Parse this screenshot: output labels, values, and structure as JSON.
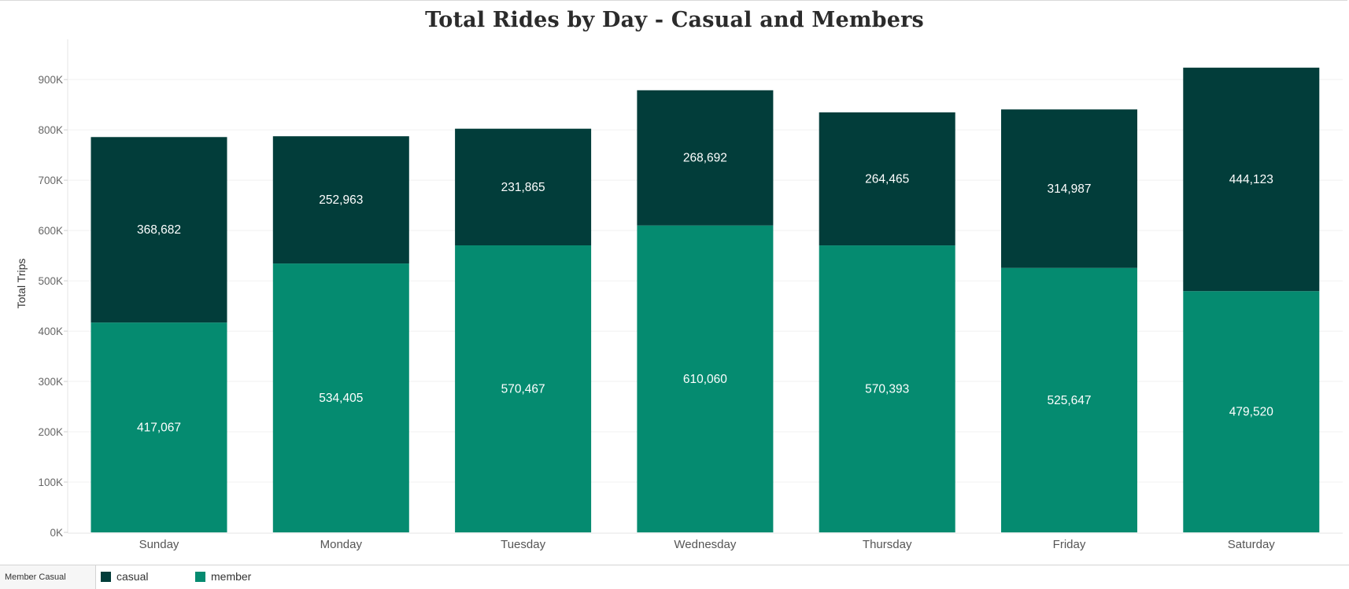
{
  "chart_data": {
    "type": "bar",
    "stacked": true,
    "title": "Total Rides by Day - Casual and Members",
    "xlabel": "",
    "ylabel": "Total Trips",
    "categories": [
      "Sunday",
      "Monday",
      "Tuesday",
      "Wednesday",
      "Thursday",
      "Friday",
      "Saturday"
    ],
    "series": [
      {
        "name": "member",
        "color": "#058b70",
        "values": [
          417067,
          534405,
          570467,
          610060,
          570393,
          525647,
          479520
        ],
        "labels": [
          "417,067",
          "534,405",
          "570,467",
          "610,060",
          "570,393",
          "525,647",
          "479,520"
        ]
      },
      {
        "name": "casual",
        "color": "#023d3a",
        "values": [
          368682,
          252963,
          231865,
          268692,
          264465,
          314987,
          444123
        ],
        "labels": [
          "368,682",
          "252,963",
          "231,865",
          "268,692",
          "264,465",
          "314,987",
          "444,123"
        ]
      }
    ],
    "ylim": [
      0,
      980000
    ],
    "yticks": [
      0,
      100000,
      200000,
      300000,
      400000,
      500000,
      600000,
      700000,
      800000,
      900000
    ],
    "ytick_labels": [
      "0K",
      "100K",
      "200K",
      "300K",
      "400K",
      "500K",
      "600K",
      "700K",
      "800K",
      "900K"
    ],
    "grid": true,
    "legend": {
      "title": "Member Casual",
      "placement": "bottom-left",
      "items": [
        {
          "name": "casual",
          "color": "#023d3a"
        },
        {
          "name": "member",
          "color": "#058b70"
        }
      ]
    }
  }
}
